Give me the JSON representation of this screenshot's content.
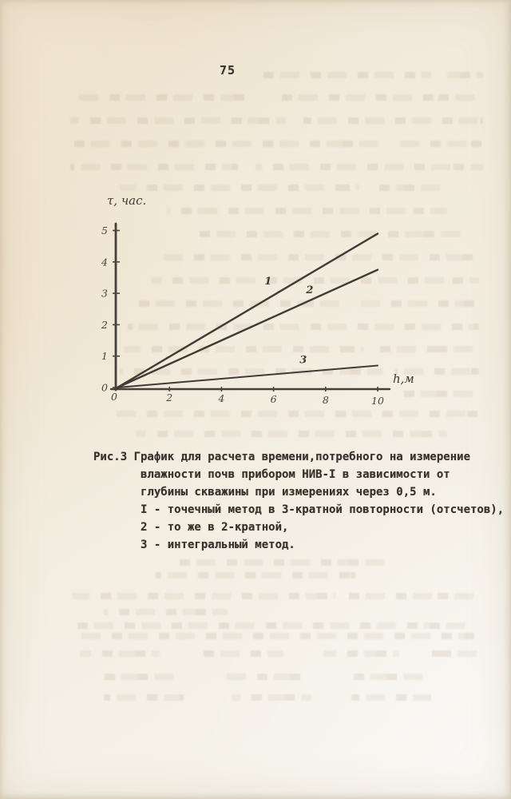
{
  "page": {
    "number": "75"
  },
  "chart": {
    "y_axis_title": "τ, час.",
    "x_axis_title": "h,м"
  },
  "chart_data": {
    "type": "line",
    "title": "График для расчета времени, потребного на измерение влажности почв прибором НИВ-I в зависимости от глубины скважины при измерениях через 0,5 м",
    "xlabel": "h, м",
    "ylabel": "τ, час",
    "xlim": [
      0,
      10
    ],
    "ylim": [
      0,
      5
    ],
    "xticks": [
      0,
      2,
      4,
      6,
      8,
      10
    ],
    "yticks": [
      0,
      1,
      2,
      3,
      4,
      5
    ],
    "grid": false,
    "legend_position": "none",
    "series": [
      {
        "name": "1 — точечный метод в 3-кратной повторности (отсчетов)",
        "label": "1",
        "label_at": [
          5.65,
          3.28
        ],
        "x": [
          0,
          10
        ],
        "y": [
          0,
          4.9
        ]
      },
      {
        "name": "2 — то же в 2-кратной",
        "label": "2",
        "label_at": [
          7.25,
          3.0
        ],
        "x": [
          0,
          10
        ],
        "y": [
          0,
          3.75
        ]
      },
      {
        "name": "3 — интегральный метод",
        "label": "3",
        "label_at": [
          7.0,
          0.78
        ],
        "x": [
          0,
          10
        ],
        "y": [
          0,
          0.7
        ]
      }
    ]
  },
  "caption": {
    "lines": [
      "Рис.3 График для расчета времени,потребного на измерение",
      "влажности почв прибором НИВ-I в зависимости от",
      "глубины скважины при измерениях через 0,5 м.",
      "I - точечный метод в 3-кратной повторности (отсчетов),",
      "2 - то же в 2-кратной,",
      "3 - интегральный метод."
    ]
  },
  "bleedthrough": {
    "rows": [
      [
        90,
        [
          [
            330,
            210
          ],
          [
            560,
            45
          ]
        ]
      ],
      [
        118,
        [
          [
            95,
            215
          ],
          [
            340,
            255
          ]
        ]
      ],
      [
        147,
        [
          [
            88,
            270
          ],
          [
            380,
            225
          ]
        ]
      ],
      [
        176,
        [
          [
            85,
            395
          ],
          [
            500,
            110
          ]
        ]
      ],
      [
        205,
        [
          [
            88,
            210
          ],
          [
            320,
            285
          ]
        ]
      ],
      [
        231,
        [
          [
            150,
            300
          ],
          [
            470,
            90
          ]
        ]
      ],
      [
        260,
        [
          [
            210,
            350
          ]
        ]
      ],
      [
        289,
        [
          [
            250,
            340
          ]
        ]
      ],
      [
        318,
        [
          [
            200,
            395
          ]
        ]
      ],
      [
        347,
        [
          [
            190,
            410
          ]
        ]
      ],
      [
        376,
        [
          [
            165,
            265
          ],
          [
            450,
            150
          ]
        ]
      ],
      [
        405,
        [
          [
            160,
            440
          ]
        ]
      ],
      [
        433,
        [
          [
            155,
            300
          ],
          [
            470,
            130
          ]
        ]
      ],
      [
        461,
        [
          [
            150,
            330
          ],
          [
            495,
            105
          ]
        ]
      ],
      [
        489,
        [
          [
            505,
            100
          ]
        ]
      ],
      [
        514,
        [
          [
            140,
            460
          ]
        ]
      ],
      [
        539,
        [
          [
            170,
            390
          ]
        ]
      ],
      [
        700,
        [
          [
            215,
            270
          ]
        ]
      ],
      [
        716,
        [
          [
            195,
            250
          ]
        ]
      ],
      [
        742,
        [
          [
            90,
            330
          ],
          [
            430,
            170
          ]
        ]
      ],
      [
        762,
        [
          [
            130,
            155
          ]
        ]
      ],
      [
        779,
        [
          [
            95,
            500
          ]
        ]
      ],
      [
        792,
        [
          [
            95,
            500
          ]
        ]
      ],
      [
        814,
        [
          [
            100,
            100
          ],
          [
            255,
            100
          ],
          [
            405,
            95
          ],
          [
            540,
            70
          ]
        ]
      ],
      [
        843,
        [
          [
            120,
            100
          ],
          [
            280,
            100
          ],
          [
            430,
            100
          ]
        ]
      ],
      [
        869,
        [
          [
            130,
            100
          ],
          [
            290,
            100
          ],
          [
            440,
            100
          ]
        ]
      ]
    ]
  }
}
